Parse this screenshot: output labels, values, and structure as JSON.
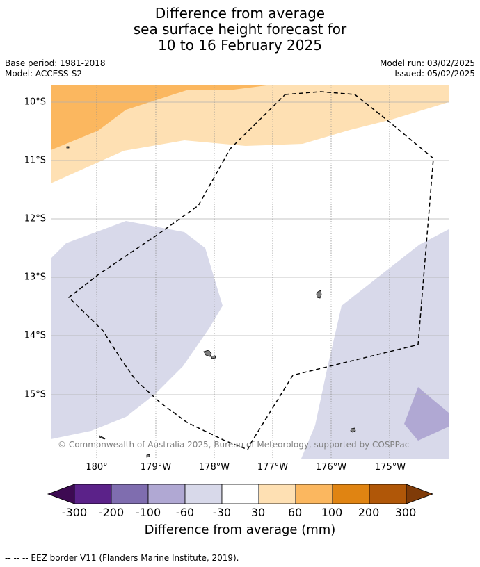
{
  "title": {
    "line1": "Difference from average",
    "line2": "sea surface height forecast for",
    "line3": "10 to 16 February 2025"
  },
  "meta": {
    "base_period": "Base period: 1981-2018",
    "model": "Model: ACCESS-S2",
    "model_run": "Model run: 03/02/2025",
    "issued": "Issued: 05/02/2025"
  },
  "map": {
    "lat_labels": [
      "10°S",
      "11°S",
      "12°S",
      "13°S",
      "14°S",
      "15°S"
    ],
    "lon_labels": [
      "180°",
      "179°W",
      "178°W",
      "177°W",
      "176°W",
      "175°W"
    ],
    "copyright": "© Commonwealth of Australia 2025, Bureau of Meteorology, supported by COSPPac",
    "colors": {
      "ocean": "#ffffff",
      "gridline": "#b0b0b0",
      "eez_border": "#000000",
      "land": "#7f7f7f"
    }
  },
  "colorbar": {
    "title": "Difference from average (mm)",
    "ticks": [
      "-300",
      "-200",
      "-100",
      "-60",
      "-30",
      "30",
      "60",
      "100",
      "200",
      "300"
    ],
    "colors": [
      "#3d0a52",
      "#5b2289",
      "#7f6daf",
      "#b0a8d3",
      "#d8d9ea",
      "#ffffff",
      "#fee0b3",
      "#fbb75f",
      "#e08412",
      "#b05708",
      "#7f3b08"
    ]
  },
  "footnote": "--  --  -- EEZ border V11 (Flanders Marine Institute, 2019)."
}
